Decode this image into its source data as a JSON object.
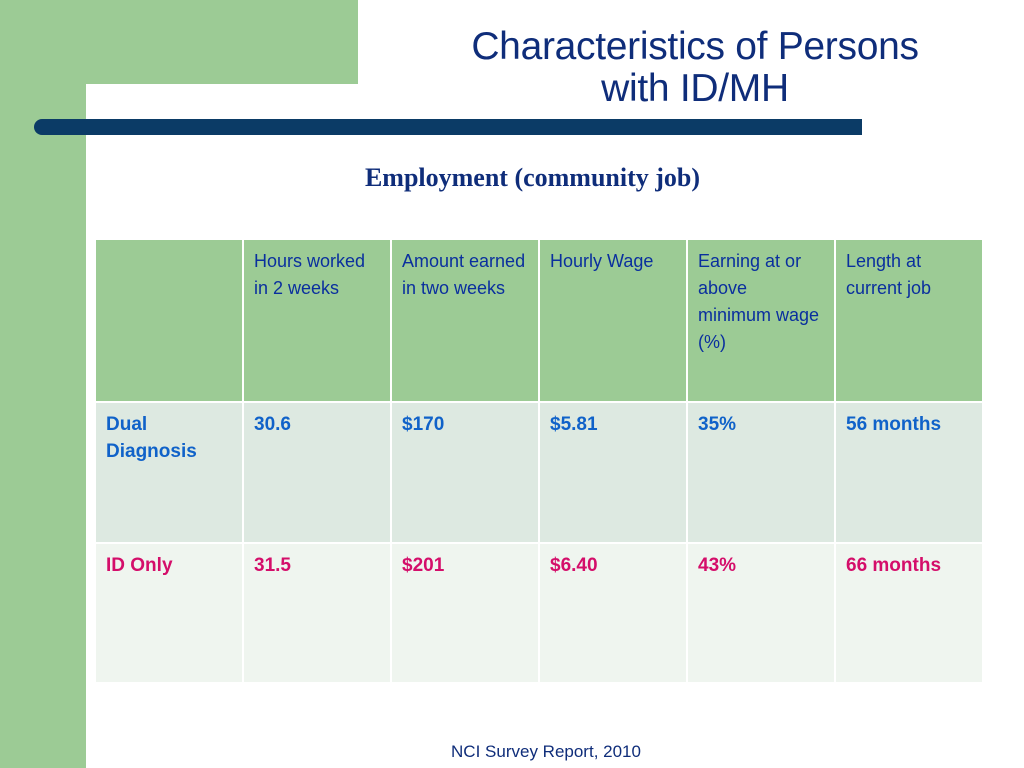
{
  "slide": {
    "title_line1": "Characteristics of Persons",
    "title_line2": "with ID/MH",
    "subtitle": "Employment (community job)",
    "footer": "NCI Survey Report, 2010"
  },
  "colors": {
    "green_frame": "#9ccb95",
    "title_blue": "#0f2d7a",
    "bar_navy": "#0b3b66",
    "dual_text": "#1062c9",
    "id_only_text": "#d40e6a"
  },
  "table": {
    "headers": [
      "",
      "Hours worked in 2 weeks",
      "Amount earned in two weeks",
      "Hourly Wage",
      "Earning at or above minimum wage (%)",
      "Length at current job"
    ],
    "rows": [
      [
        "Dual Diagnosis",
        "30.6",
        "$170",
        "$5.81",
        "35%",
        "56 months"
      ],
      [
        "ID Only",
        "31.5",
        "$201",
        "$6.40",
        "43%",
        "66 months"
      ]
    ]
  }
}
